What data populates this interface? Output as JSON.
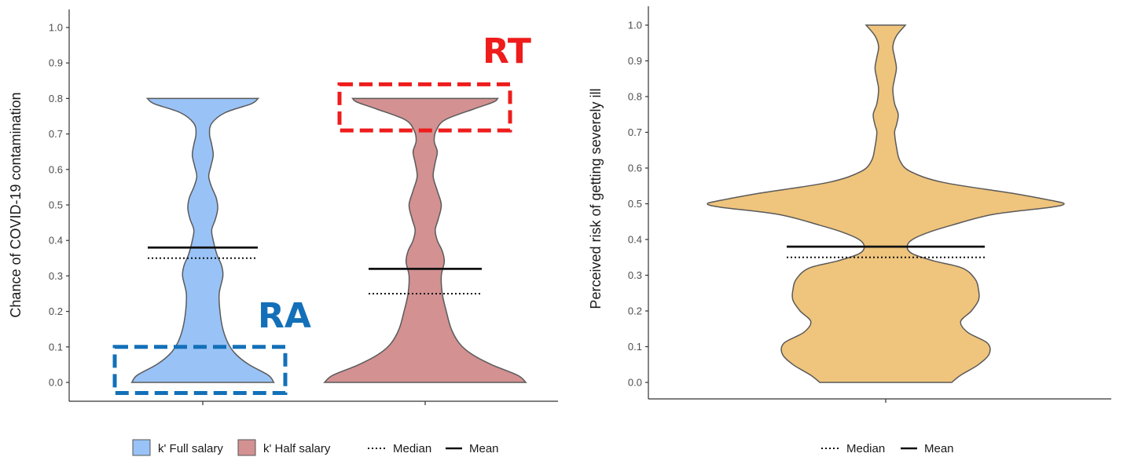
{
  "chart_data": [
    {
      "type": "violin",
      "ylabel": "Chance of COVID-19 contamination",
      "ylim": [
        0,
        1.0
      ],
      "yticks": [
        "0.0",
        "0.1",
        "0.2",
        "0.3",
        "0.4",
        "0.5",
        "0.6",
        "0.7",
        "0.8",
        "0.9",
        "1.0"
      ],
      "grid": false,
      "series": [
        {
          "name": "k' Full salary",
          "color": "#99c3f7",
          "min": 0.0,
          "max": 0.8,
          "mean": 0.38,
          "median": 0.35,
          "density": [
            [
              0.0,
              0.95
            ],
            [
              0.02,
              0.88
            ],
            [
              0.05,
              0.62
            ],
            [
              0.08,
              0.44
            ],
            [
              0.11,
              0.34
            ],
            [
              0.15,
              0.27
            ],
            [
              0.2,
              0.23
            ],
            [
              0.25,
              0.22
            ],
            [
              0.3,
              0.27
            ],
            [
              0.33,
              0.25
            ],
            [
              0.36,
              0.19
            ],
            [
              0.4,
              0.14
            ],
            [
              0.43,
              0.12
            ],
            [
              0.46,
              0.17
            ],
            [
              0.49,
              0.2
            ],
            [
              0.52,
              0.18
            ],
            [
              0.55,
              0.12
            ],
            [
              0.58,
              0.08
            ],
            [
              0.61,
              0.11
            ],
            [
              0.64,
              0.14
            ],
            [
              0.67,
              0.12
            ],
            [
              0.7,
              0.09
            ],
            [
              0.73,
              0.12
            ],
            [
              0.76,
              0.3
            ],
            [
              0.785,
              0.65
            ],
            [
              0.8,
              0.74
            ]
          ]
        },
        {
          "name": "k' Half salary",
          "color": "#d39192",
          "min": 0.0,
          "max": 0.8,
          "mean": 0.32,
          "median": 0.25,
          "density": [
            [
              0.0,
              1.0
            ],
            [
              0.02,
              0.92
            ],
            [
              0.05,
              0.66
            ],
            [
              0.08,
              0.46
            ],
            [
              0.11,
              0.34
            ],
            [
              0.15,
              0.26
            ],
            [
              0.2,
              0.21
            ],
            [
              0.25,
              0.17
            ],
            [
              0.3,
              0.16
            ],
            [
              0.34,
              0.19
            ],
            [
              0.37,
              0.17
            ],
            [
              0.4,
              0.12
            ],
            [
              0.43,
              0.1
            ],
            [
              0.46,
              0.13
            ],
            [
              0.5,
              0.16
            ],
            [
              0.54,
              0.12
            ],
            [
              0.58,
              0.08
            ],
            [
              0.62,
              0.1
            ],
            [
              0.65,
              0.12
            ],
            [
              0.68,
              0.09
            ],
            [
              0.71,
              0.11
            ],
            [
              0.74,
              0.2
            ],
            [
              0.77,
              0.48
            ],
            [
              0.79,
              0.68
            ],
            [
              0.8,
              0.72
            ]
          ]
        }
      ],
      "legend": [
        "k' Full salary",
        "k' Half salary",
        "Median",
        "Mean"
      ],
      "annotations": [
        {
          "text": "RA",
          "color": "#1370b8",
          "box_y": [
            -0.03,
            0.1
          ]
        },
        {
          "text": "RT",
          "color": "#ee1c1c",
          "box_y": [
            0.71,
            0.84
          ]
        }
      ]
    },
    {
      "type": "violin",
      "ylabel": "Perceived risk of getting severely ill",
      "ylim": [
        0,
        1.0
      ],
      "yticks": [
        "0.0",
        "0.1",
        "0.2",
        "0.3",
        "0.4",
        "0.5",
        "0.6",
        "0.7",
        "0.8",
        "0.9",
        "1.0"
      ],
      "grid": false,
      "series": [
        {
          "name": "",
          "color": "#efc47c",
          "min": 0.0,
          "max": 1.0,
          "mean": 0.38,
          "median": 0.35,
          "density": [
            [
              0.0,
              0.37
            ],
            [
              0.02,
              0.42
            ],
            [
              0.05,
              0.52
            ],
            [
              0.08,
              0.58
            ],
            [
              0.11,
              0.57
            ],
            [
              0.14,
              0.46
            ],
            [
              0.17,
              0.42
            ],
            [
              0.2,
              0.48
            ],
            [
              0.23,
              0.52
            ],
            [
              0.26,
              0.52
            ],
            [
              0.29,
              0.5
            ],
            [
              0.32,
              0.43
            ],
            [
              0.34,
              0.27
            ],
            [
              0.36,
              0.15
            ],
            [
              0.38,
              0.12
            ],
            [
              0.4,
              0.15
            ],
            [
              0.42,
              0.24
            ],
            [
              0.44,
              0.37
            ],
            [
              0.47,
              0.6
            ],
            [
              0.49,
              0.92
            ],
            [
              0.5,
              1.0
            ],
            [
              0.51,
              0.92
            ],
            [
              0.53,
              0.7
            ],
            [
              0.56,
              0.32
            ],
            [
              0.59,
              0.14
            ],
            [
              0.62,
              0.08
            ],
            [
              0.66,
              0.06
            ],
            [
              0.7,
              0.05
            ],
            [
              0.72,
              0.06
            ],
            [
              0.75,
              0.07
            ],
            [
              0.78,
              0.05
            ],
            [
              0.82,
              0.04
            ],
            [
              0.85,
              0.05
            ],
            [
              0.88,
              0.06
            ],
            [
              0.91,
              0.05
            ],
            [
              0.94,
              0.04
            ],
            [
              0.97,
              0.06
            ],
            [
              1.0,
              0.11
            ]
          ]
        }
      ],
      "legend": [
        "Median",
        "Mean"
      ]
    }
  ]
}
